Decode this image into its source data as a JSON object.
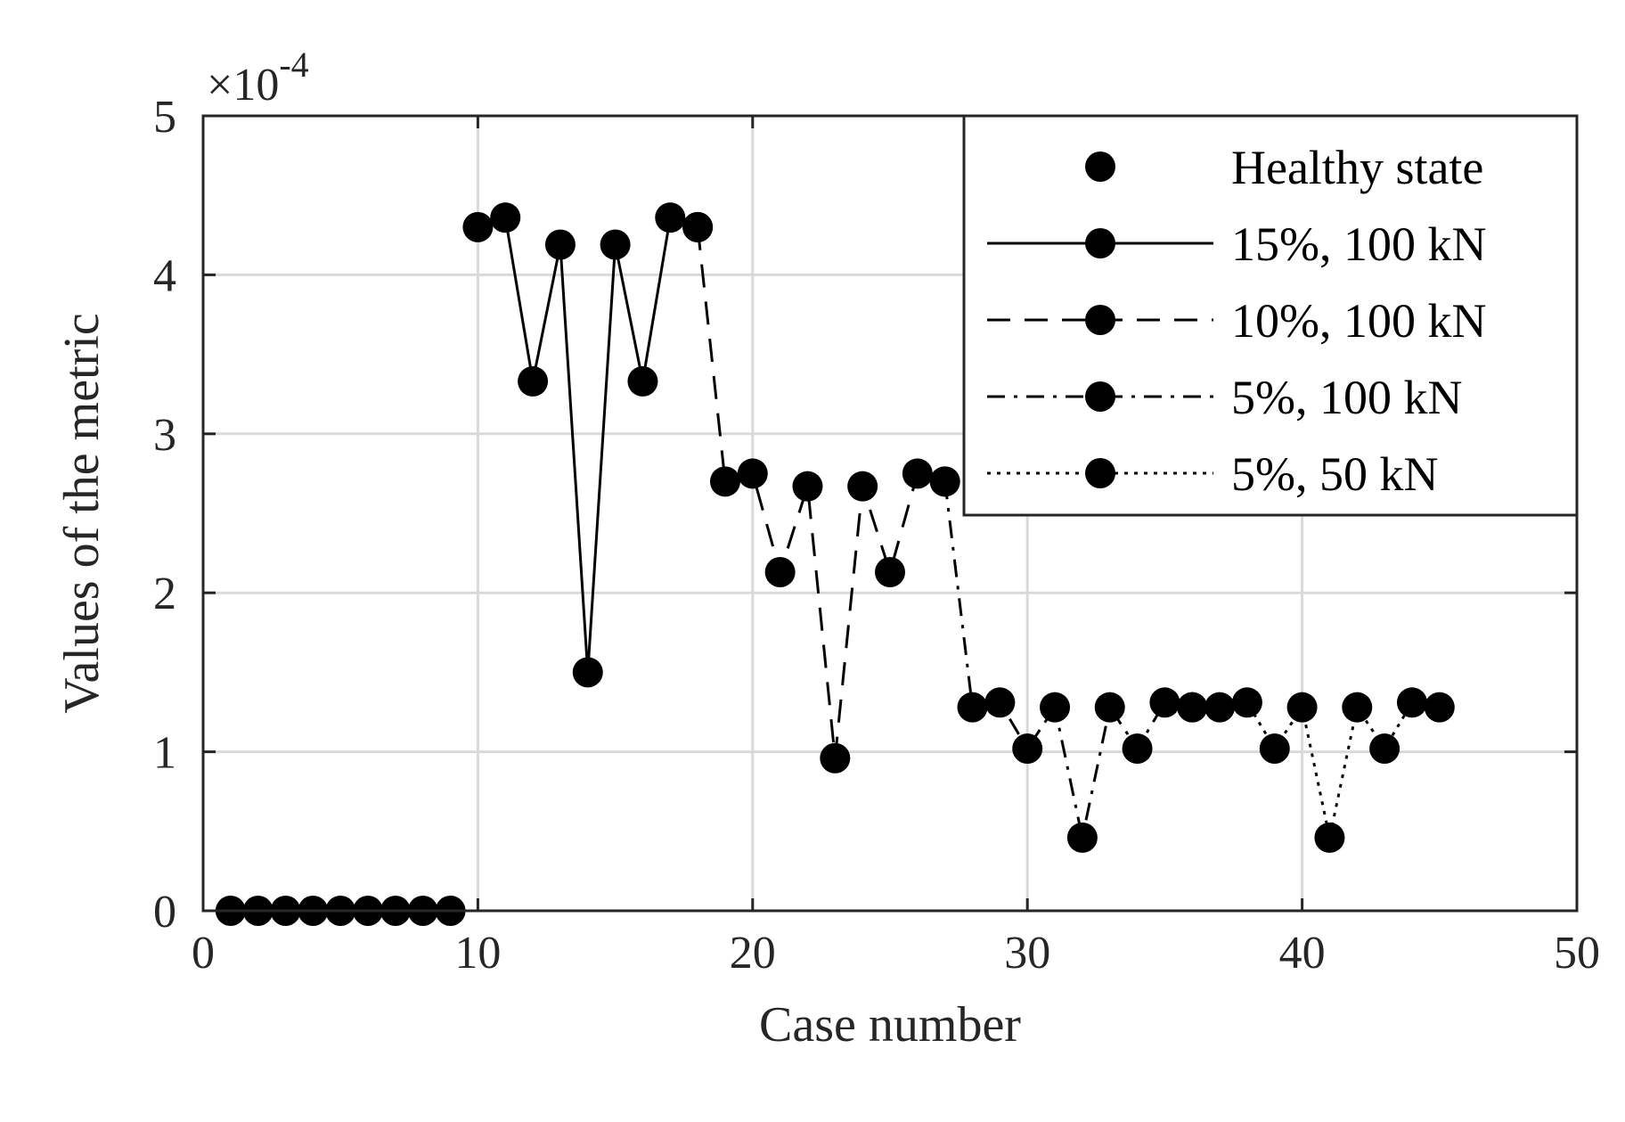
{
  "chart_data": {
    "type": "line",
    "title": "",
    "xlabel": "Case number",
    "ylabel": "Values of the metric",
    "y_exponent_label": "×10",
    "y_exponent_power": "-4",
    "xlim": [
      0,
      50
    ],
    "ylim": [
      0,
      5
    ],
    "y_scale": 0.0001,
    "xticks": [
      0,
      10,
      20,
      30,
      40,
      50
    ],
    "yticks": [
      0,
      1,
      2,
      3,
      4,
      5
    ],
    "grid": true,
    "legend_position": "top-right",
    "series": [
      {
        "name": "Healthy state",
        "linestyle": "none",
        "x": [
          1,
          2,
          3,
          4,
          5,
          6,
          7,
          8,
          9
        ],
        "y": [
          0,
          0,
          0,
          0,
          0,
          0,
          0,
          0,
          0
        ]
      },
      {
        "name": "15%, 100 kN",
        "linestyle": "solid",
        "x": [
          10,
          11,
          12,
          13,
          14,
          15,
          16,
          17,
          18
        ],
        "y": [
          4.3,
          4.36,
          3.33,
          4.19,
          1.5,
          4.19,
          3.33,
          4.36,
          4.3
        ]
      },
      {
        "name": "10%, 100 kN",
        "linestyle": "dashed",
        "x": [
          18,
          19,
          20,
          21,
          22,
          23,
          24,
          25,
          26,
          27
        ],
        "y": [
          4.3,
          2.7,
          2.75,
          2.13,
          2.67,
          0.96,
          2.67,
          2.13,
          2.75,
          2.7
        ]
      },
      {
        "name": "5%, 100 kN",
        "linestyle": "dashdot",
        "x": [
          27,
          28,
          29,
          30,
          31,
          32,
          33,
          34,
          35,
          36
        ],
        "y": [
          2.7,
          1.28,
          1.31,
          1.02,
          1.28,
          0.46,
          1.28,
          1.02,
          1.31,
          1.28
        ]
      },
      {
        "name": "5%, 50 kN",
        "linestyle": "dotted",
        "x": [
          36,
          37,
          38,
          39,
          40,
          41,
          42,
          43,
          44,
          45
        ],
        "y": [
          1.28,
          1.28,
          1.31,
          1.02,
          1.28,
          0.46,
          1.28,
          1.02,
          1.31,
          1.28
        ]
      }
    ]
  }
}
